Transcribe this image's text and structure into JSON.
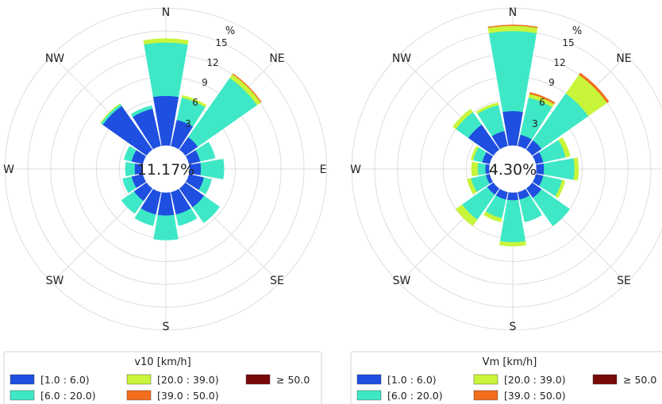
{
  "chart_data": [
    {
      "type": "windrose",
      "calm_label": "11.17%",
      "radial_unit": "%",
      "radial_ticks": [
        "3",
        "6",
        "9",
        "12",
        "15"
      ],
      "directions": [
        "N",
        "NNE",
        "NE",
        "ENE",
        "E",
        "ESE",
        "SE",
        "SSE",
        "S",
        "SSW",
        "SW",
        "WSW",
        "W",
        "WNW",
        "NW",
        "NNW"
      ],
      "direction_labels": [
        {
          "key": "N",
          "text": "N"
        },
        {
          "key": "NE",
          "text": "NE"
        },
        {
          "key": "E",
          "text": "E"
        },
        {
          "key": "SE",
          "text": "SE"
        },
        {
          "key": "S",
          "text": "S"
        },
        {
          "key": "SW",
          "text": "SW"
        },
        {
          "key": "W",
          "text": "W"
        },
        {
          "key": "NW",
          "text": "NW"
        }
      ],
      "legend_title": "v10 [km/h]",
      "series": [
        {
          "name": "[1.0 : 6.0)",
          "color": "#1f4fe0",
          "values": [
            6.5,
            3.5,
            2.0,
            1.5,
            1.5,
            2.0,
            3.0,
            3.0,
            3.0,
            3.0,
            2.0,
            1.5,
            1.0,
            1.5,
            7.0,
            5.0
          ]
        },
        {
          "name": "[6.0 : 20.0)",
          "color": "#3ee8c6",
          "values": [
            7.0,
            3.0,
            9.5,
            2.0,
            3.0,
            1.0,
            2.5,
            1.5,
            3.2,
            1.5,
            2.0,
            1.2,
            1.2,
            1.0,
            0.3,
            0.4
          ]
        },
        {
          "name": "[20.0 : 39.0)",
          "color": "#c8f53a",
          "values": [
            0.5,
            0.3,
            0.6,
            0.0,
            0.0,
            0.0,
            0.0,
            0.0,
            0.0,
            0.0,
            0.0,
            0.0,
            0.0,
            0.0,
            0.1,
            0.0
          ]
        },
        {
          "name": "[39.0 : 50.0)",
          "color": "#f26d1c",
          "values": [
            0.0,
            0.0,
            0.1,
            0.0,
            0.0,
            0.0,
            0.0,
            0.0,
            0.0,
            0.0,
            0.0,
            0.0,
            0.0,
            0.0,
            0.0,
            0.0
          ]
        },
        {
          "name": "≥ 50.0",
          "color": "#7a0a0a",
          "values": [
            0.0,
            0.0,
            0.0,
            0.0,
            0.0,
            0.0,
            0.0,
            0.0,
            0.0,
            0.0,
            0.0,
            0.0,
            0.0,
            0.0,
            0.0,
            0.0
          ]
        }
      ]
    },
    {
      "type": "windrose",
      "calm_label": "4.30%",
      "radial_unit": "%",
      "radial_ticks": [
        "3",
        "6",
        "9",
        "12",
        "15"
      ],
      "directions": [
        "N",
        "NNE",
        "NE",
        "ENE",
        "E",
        "ESE",
        "SE",
        "SSE",
        "S",
        "SSW",
        "SW",
        "WSW",
        "W",
        "WNW",
        "NW",
        "NNW"
      ],
      "direction_labels": [
        {
          "key": "N",
          "text": "N"
        },
        {
          "key": "NE",
          "text": "NE"
        },
        {
          "key": "E",
          "text": ""
        },
        {
          "key": "SE",
          "text": "SE"
        },
        {
          "key": "S",
          "text": "S"
        },
        {
          "key": "SW",
          "text": "SW"
        },
        {
          "key": "W",
          "text": "W"
        },
        {
          "key": "NW",
          "text": "NW"
        }
      ],
      "legend_title": "Vm [km/h]",
      "series": [
        {
          "name": "[1.0 : 6.0)",
          "color": "#1f4fe0",
          "values": [
            4.5,
            1.5,
            1.5,
            1.0,
            1.0,
            1.0,
            1.5,
            1.0,
            1.0,
            1.0,
            1.0,
            0.5,
            0.5,
            1.0,
            4.0,
            2.0
          ]
        },
        {
          "name": "[6.0 : 20.0)",
          "color": "#3ee8c6",
          "values": [
            10.5,
            5.0,
            7.5,
            3.0,
            4.0,
            2.5,
            4.5,
            3.0,
            5.5,
            2.5,
            4.0,
            2.0,
            1.0,
            1.2,
            2.0,
            3.5
          ]
        },
        {
          "name": "[20.0 : 39.0)",
          "color": "#c8f53a",
          "values": [
            0.7,
            0.5,
            3.0,
            0.6,
            0.5,
            0.4,
            0.0,
            0.0,
            0.5,
            0.5,
            1.0,
            0.5,
            0.8,
            0.3,
            0.5,
            0.3
          ]
        },
        {
          "name": "[39.0 : 50.0)",
          "color": "#f26d1c",
          "values": [
            0.1,
            0.2,
            0.3,
            0.0,
            0.0,
            0.0,
            0.0,
            0.0,
            0.0,
            0.0,
            0.0,
            0.0,
            0.0,
            0.0,
            0.0,
            0.0
          ]
        },
        {
          "name": "≥ 50.0",
          "color": "#7a0a0a",
          "values": [
            0.0,
            0.0,
            0.0,
            0.0,
            0.0,
            0.0,
            0.0,
            0.0,
            0.0,
            0.0,
            0.0,
            0.0,
            0.0,
            0.0,
            0.0,
            0.0
          ]
        }
      ]
    }
  ]
}
